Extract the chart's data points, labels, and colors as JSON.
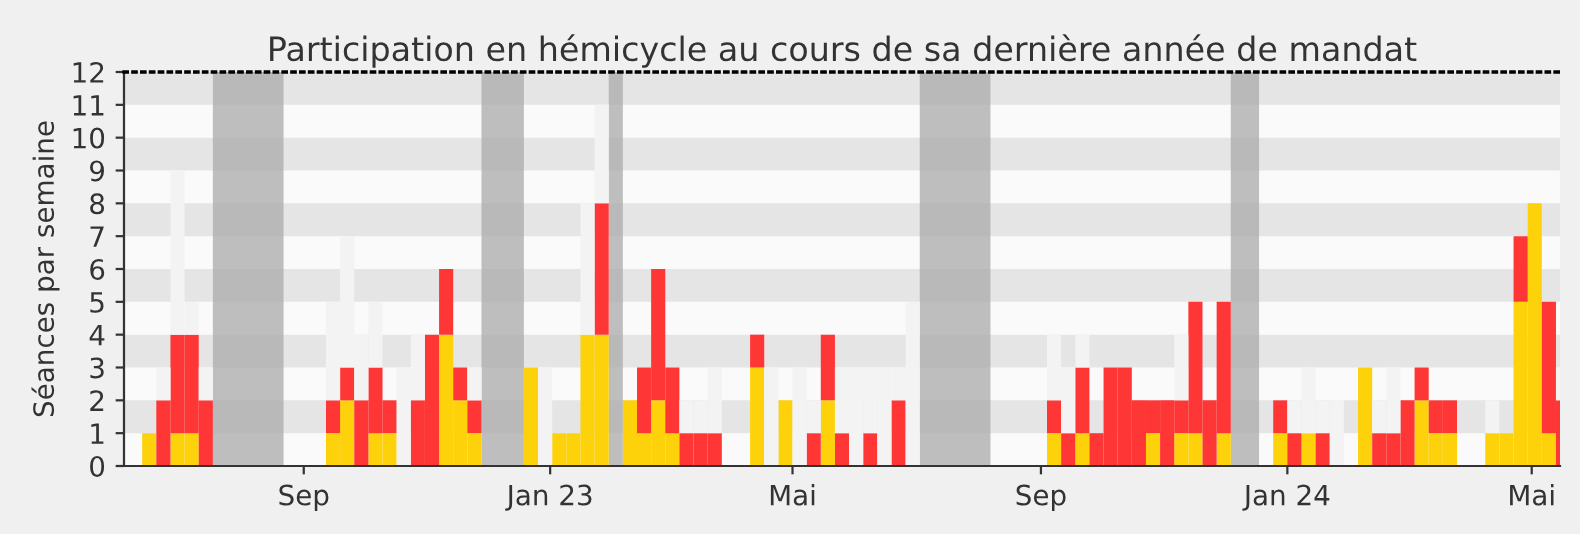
{
  "chart_data": {
    "type": "bar",
    "stacked": true,
    "title": "Participation en hémicycle au cours de sa dernière année de mandat",
    "ylabel": "Séances par semaine",
    "x": [
      "2022-06-13",
      "2022-06-20",
      "2022-06-27",
      "2022-07-04",
      "2022-07-11",
      "2022-07-18",
      "2022-07-25",
      "2022-08-01",
      "2022-08-08",
      "2022-08-15",
      "2022-08-22",
      "2022-08-29",
      "2022-09-05",
      "2022-09-12",
      "2022-09-19",
      "2022-09-26",
      "2022-10-03",
      "2022-10-10",
      "2022-10-17",
      "2022-10-24",
      "2022-10-31",
      "2022-11-07",
      "2022-11-14",
      "2022-11-21",
      "2022-11-28",
      "2022-12-05",
      "2022-12-12",
      "2022-12-19",
      "2022-12-26",
      "2023-01-02",
      "2023-01-09",
      "2023-01-16",
      "2023-01-23",
      "2023-01-30",
      "2023-02-06",
      "2023-02-13",
      "2023-02-20",
      "2023-02-27",
      "2023-03-06",
      "2023-03-13",
      "2023-03-20",
      "2023-03-27",
      "2023-04-03",
      "2023-04-10",
      "2023-04-17",
      "2023-04-24",
      "2023-05-01",
      "2023-05-08",
      "2023-05-15",
      "2023-05-22",
      "2023-05-29",
      "2023-06-05",
      "2023-06-12",
      "2023-06-19",
      "2023-06-26",
      "2023-07-03",
      "2023-07-10",
      "2023-07-17",
      "2023-07-24",
      "2023-07-31",
      "2023-08-07",
      "2023-08-14",
      "2023-08-21",
      "2023-08-28",
      "2023-09-04",
      "2023-09-11",
      "2023-09-18",
      "2023-09-25",
      "2023-10-02",
      "2023-10-09",
      "2023-10-16",
      "2023-10-23",
      "2023-10-30",
      "2023-11-06",
      "2023-11-13",
      "2023-11-20",
      "2023-11-27",
      "2023-12-04",
      "2023-12-11",
      "2023-12-18",
      "2023-12-25",
      "2024-01-01",
      "2024-01-08",
      "2024-01-15",
      "2024-01-22",
      "2024-01-29",
      "2024-02-05",
      "2024-02-12",
      "2024-02-19",
      "2024-02-26",
      "2024-03-04",
      "2024-03-11",
      "2024-03-18",
      "2024-03-25",
      "2024-04-01",
      "2024-04-08",
      "2024-04-15",
      "2024-04-22",
      "2024-04-29",
      "2024-05-06",
      "2024-05-13"
    ],
    "series": [
      {
        "color": "#fdd20b",
        "values": [
          1,
          0,
          1,
          1,
          0,
          0,
          0,
          0,
          0,
          0,
          0,
          0,
          0,
          1,
          2,
          0,
          1,
          1,
          0,
          0,
          0,
          4,
          2,
          1,
          0,
          0,
          0,
          3,
          0,
          1,
          1,
          4,
          4,
          0,
          2,
          1,
          2,
          1,
          0,
          0,
          0,
          0,
          0,
          3,
          0,
          2,
          0,
          0,
          2,
          0,
          0,
          0,
          0,
          0,
          0,
          0,
          0,
          0,
          0,
          0,
          0,
          0,
          0,
          0,
          1,
          0,
          1,
          0,
          0,
          0,
          0,
          1,
          0,
          1,
          1,
          0,
          1,
          0,
          0,
          0,
          1,
          0,
          1,
          0,
          0,
          0,
          3,
          0,
          0,
          0,
          2,
          1,
          1,
          0,
          0,
          1,
          1,
          5,
          8,
          1,
          0
        ]
      },
      {
        "color": "#fe3636",
        "values": [
          0,
          2,
          3,
          3,
          2,
          0,
          0,
          0,
          0,
          0,
          0,
          0,
          0,
          1,
          1,
          2,
          2,
          1,
          0,
          2,
          4,
          2,
          1,
          1,
          0,
          0,
          0,
          0,
          0,
          0,
          0,
          0,
          4,
          0,
          0,
          2,
          4,
          2,
          1,
          1,
          1,
          0,
          0,
          1,
          0,
          0,
          0,
          1,
          2,
          1,
          0,
          1,
          0,
          2,
          0,
          0,
          0,
          0,
          0,
          0,
          0,
          0,
          0,
          0,
          1,
          1,
          2,
          1,
          3,
          3,
          2,
          1,
          2,
          1,
          4,
          2,
          4,
          0,
          0,
          0,
          1,
          1,
          0,
          1,
          0,
          0,
          0,
          1,
          1,
          2,
          1,
          1,
          1,
          0,
          0,
          0,
          0,
          2,
          0,
          4,
          2
        ]
      },
      {
        "color": "#f3f3f3",
        "values": [
          0,
          1,
          5,
          1,
          1,
          0,
          0,
          0,
          0,
          0,
          0,
          0,
          0,
          3,
          4,
          2,
          2,
          0,
          3,
          2,
          0,
          0,
          0,
          1,
          0,
          0,
          0,
          0,
          3,
          0,
          0,
          4,
          3,
          0,
          0,
          0,
          0,
          0,
          1,
          1,
          2,
          0,
          0,
          0,
          3,
          0,
          3,
          1,
          0,
          2,
          3,
          2,
          3,
          1,
          5,
          0,
          0,
          0,
          0,
          0,
          0,
          0,
          0,
          0,
          2,
          2,
          1,
          0,
          0,
          0,
          0,
          0,
          0,
          2,
          0,
          0,
          0,
          0,
          0,
          0,
          0,
          1,
          2,
          1,
          2,
          0,
          0,
          1,
          2,
          0,
          0,
          0,
          0,
          0,
          0,
          1,
          0,
          0,
          0,
          0,
          1
        ]
      }
    ],
    "bands": [
      {
        "axis": "x",
        "from": "2022-07-18",
        "to": "2022-08-22",
        "color": "#a9a9a9"
      },
      {
        "axis": "x",
        "from": "2022-11-28",
        "to": "2022-12-19",
        "color": "#a9a9a9"
      },
      {
        "axis": "x",
        "from": "2023-01-30",
        "to": "2023-02-06",
        "color": "#a9a9a9"
      },
      {
        "axis": "x",
        "from": "2023-07-03",
        "to": "2023-08-07",
        "color": "#a9a9a9"
      },
      {
        "axis": "x",
        "from": "2023-12-04",
        "to": "2023-12-18",
        "color": "#a9a9a9"
      }
    ],
    "xlim": [
      "2022-06-04",
      "2024-05-15"
    ],
    "xticks": [
      {
        "value": "2022-09-01",
        "label": "Sep"
      },
      {
        "value": "2023-01-01",
        "label": "Jan 23"
      },
      {
        "value": "2023-05-01",
        "label": "Mai"
      },
      {
        "value": "2023-09-01",
        "label": "Sep"
      },
      {
        "value": "2024-01-01",
        "label": "Jan 24"
      },
      {
        "value": "2024-05-01",
        "label": "Mai"
      }
    ],
    "ylim": [
      0,
      12
    ],
    "yticks": [
      0,
      1,
      2,
      3,
      4,
      5,
      6,
      7,
      8,
      9,
      10,
      11,
      12
    ]
  }
}
